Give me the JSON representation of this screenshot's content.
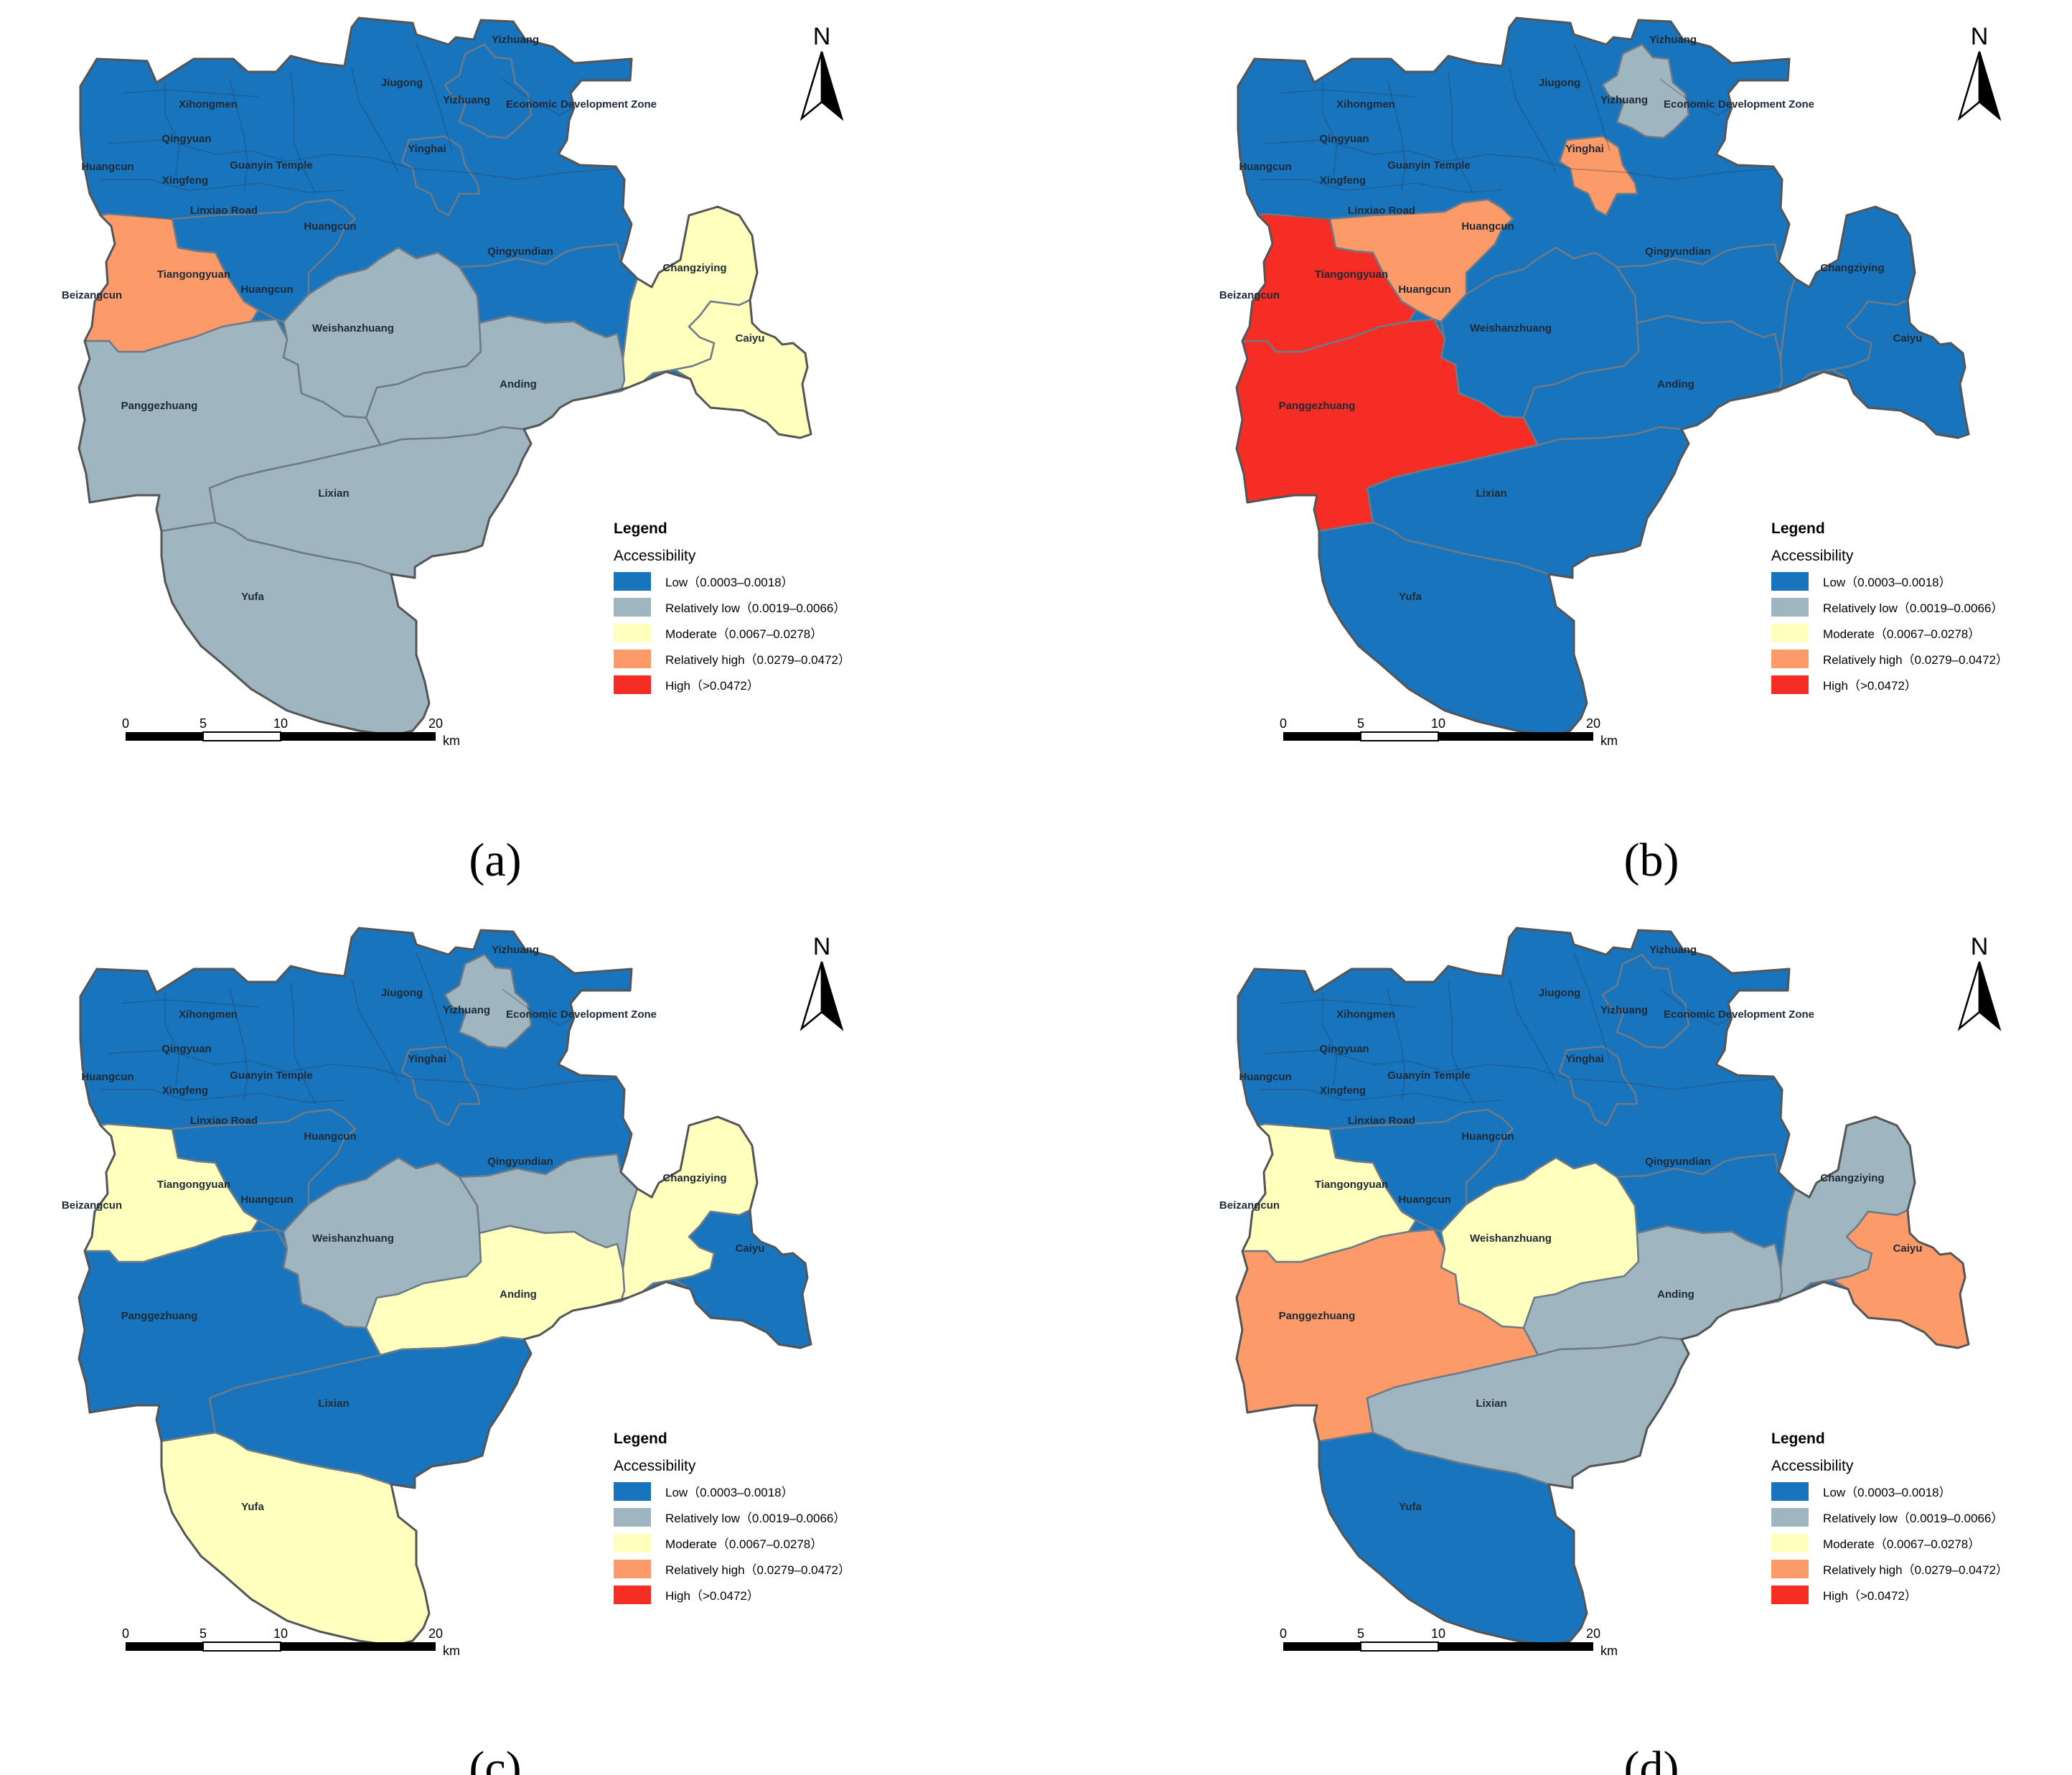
{
  "legend": {
    "title": "Legend",
    "subtitle": "Accessibility",
    "classes": [
      {
        "key": "low",
        "label": "Low（0.0003–0.0018）",
        "color": "#1874bc"
      },
      {
        "key": "rlow",
        "label": "Relatively low（0.0019–0.0066）",
        "color": "#9fb5bf"
      },
      {
        "key": "mod",
        "label": "Moderate（0.0067–0.0278）",
        "color": "#ffffbe"
      },
      {
        "key": "rhigh",
        "label": "Relatively high（0.0279–0.0472）",
        "color": "#fc9a6a"
      },
      {
        "key": "high",
        "label": "High（>0.0472）",
        "color": "#f52d24"
      }
    ]
  },
  "north_label": "N",
  "scale_bar": {
    "ticks": [
      "0",
      "5",
      "10",
      "20"
    ],
    "unit": "km"
  },
  "districts": {
    "yizhuang_n": "Yizhuang",
    "jiugong": "Jiugong",
    "yizhuang": "Yizhuang",
    "edz": "Economic Development Zone",
    "xihongmen": "Xihongmen",
    "qingyuan": "Qingyuan",
    "yinghai": "Yinghai",
    "huangcun_w": "Huangcun",
    "guanyin": "Guanyin Temple",
    "xingfeng": "Xingfeng",
    "linxiao": "Linxiao Road",
    "huangcun_c": "Huangcun",
    "qingyundian": "Qingyundian",
    "tiangongyuan": "Tiangongyuan",
    "huangcun_s": "Huangcun",
    "beizangcun": "Beizangcun",
    "weishanzhuang": "Weishanzhuang",
    "changziying": "Changziying",
    "caiyu": "Caiyu",
    "anding": "Anding",
    "panggezhuang": "Panggezhuang",
    "lixian": "Lixian",
    "yufa": "Yufa"
  },
  "panels": [
    {
      "label": "(a)",
      "classes": {
        "north": "low",
        "yinghai_zone": "low",
        "yizhuang_zone": "low",
        "tiangong": "low",
        "beizangcun": "rhigh",
        "panggezhuang": "rlow",
        "weishanzhuang": "rlow",
        "anding": "rlow",
        "qingyundian": "low",
        "changziying": "mod",
        "caiyu": "mod",
        "lixian": "rlow",
        "yufa": "rlow"
      }
    },
    {
      "label": "(b)",
      "classes": {
        "north": "low",
        "yinghai_zone": "rhigh",
        "yizhuang_zone": "rlow",
        "tiangong": "rhigh",
        "beizangcun": "high",
        "panggezhuang": "high",
        "weishanzhuang": "low",
        "anding": "low",
        "qingyundian": "low",
        "changziying": "low",
        "caiyu": "low",
        "lixian": "low",
        "yufa": "low"
      }
    },
    {
      "label": "(c)",
      "classes": {
        "north": "low",
        "yinghai_zone": "low",
        "yizhuang_zone": "rlow",
        "tiangong": "low",
        "beizangcun": "mod",
        "panggezhuang": "low",
        "weishanzhuang": "rlow",
        "anding": "mod",
        "qingyundian": "rlow",
        "changziying": "mod",
        "caiyu": "low",
        "lixian": "low",
        "yufa": "mod"
      }
    },
    {
      "label": "(d)",
      "classes": {
        "north": "low",
        "yinghai_zone": "low",
        "yizhuang_zone": "low",
        "tiangong": "low",
        "beizangcun": "mod",
        "panggezhuang": "rhigh",
        "weishanzhuang": "mod",
        "anding": "rlow",
        "qingyundian": "low",
        "changziying": "rlow",
        "caiyu": "rhigh",
        "lixian": "rlow",
        "yufa": "low"
      }
    }
  ]
}
